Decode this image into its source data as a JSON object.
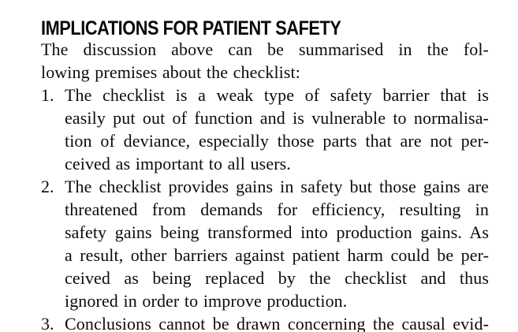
{
  "document": {
    "section_heading": "IMPLICATIONS FOR PATIENT SAFETY",
    "intro_lines": [
      "The discussion above can be summarised in the fol-",
      "lowing premises about the checklist:"
    ],
    "list_items": [
      {
        "marker": "1.",
        "lines": [
          "The checklist is a weak type of safety barrier that is",
          "easily put out of function and is vulnerable to normalisa-",
          "tion of deviance, especially those parts that are not per-",
          "ceived as important to all users."
        ]
      },
      {
        "marker": "2.",
        "lines": [
          "The checklist provides gains in safety but those gains are",
          "threatened from demands for efficiency, resulting in",
          "safety gains being transformed into production gains. As",
          "a result, other barriers against patient harm could be per-",
          "ceived as being replaced by the checklist and thus",
          "ignored in order to improve production."
        ]
      }
    ],
    "partial_bottom_line": {
      "marker": "3.",
      "text": "Conclusions cannot be drawn concerning the causal evid-"
    }
  },
  "colors": {
    "background": "#ffffff",
    "text": "#0c0c0e"
  }
}
